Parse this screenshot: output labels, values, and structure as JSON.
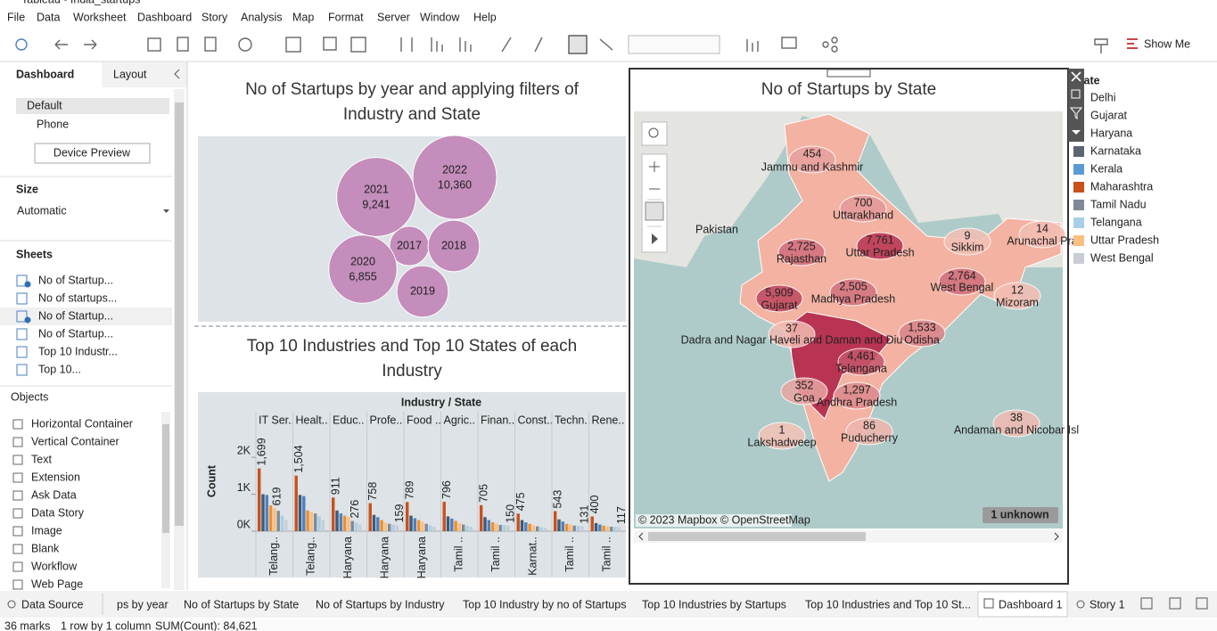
{
  "window": {
    "title": "Tableau - India_startups",
    "menu": [
      "File",
      "Data",
      "Worksheet",
      "Dashboard",
      "Story",
      "Analysis",
      "Map",
      "Format",
      "Server",
      "Window",
      "Help"
    ],
    "show_me": "Show Me"
  },
  "side_panel": {
    "tabs": [
      "Dashboard",
      "Layout"
    ],
    "devices": [
      "Default",
      "Phone"
    ],
    "device_preview": "Device Preview",
    "size_heading": "Size",
    "size": "Automatic",
    "sheets_heading": "Sheets",
    "sheets": [
      "No of Startup...",
      "No of startups...",
      "No of Startup...",
      "No of Startup...",
      "Top 10 Industr...",
      "Top 10..."
    ],
    "objects_heading": "Objects",
    "objects": [
      "Horizontal Container",
      "Vertical Container",
      "Text",
      "Extension",
      "Ask Data",
      "Data Story",
      "Image",
      "Blank",
      "Workflow",
      "Web Page"
    ]
  },
  "chart_data": [
    {
      "type": "bubble",
      "title": "No of Startups by year and applying filters of Industry and State",
      "categories": [
        "2017",
        "2018",
        "2019",
        "2020",
        "2021",
        "2022"
      ],
      "values": [
        2300,
        3900,
        3900,
        6855,
        9241,
        10360
      ],
      "value_labels": [
        null,
        null,
        null,
        "6,855",
        "9,241",
        "10,360"
      ],
      "color": "#c48dbb"
    },
    {
      "type": "bar",
      "title": "Top 10 Industries and Top 10 States of each Industry",
      "header": "Industry / State",
      "y_label": "Count",
      "categories": [
        "IT Ser..",
        "Healt..",
        "Educ..",
        "Profe..",
        "Food ..",
        "Agric..",
        "Finan..",
        "Const..",
        "Techn..",
        "Rene.."
      ],
      "x_labels": [
        "Telang..",
        "Telang..",
        "Haryana",
        "Haryana",
        "Haryana",
        "Tamil ..",
        "Tamil ..",
        "Karnat..",
        "Tamil ..",
        "Tamil .."
      ],
      "ylim": [
        0,
        2750
      ],
      "yticks": [
        {
          "value": 0,
          "label": "0K"
        },
        {
          "value": 1000,
          "label": "1K"
        },
        {
          "value": 2000,
          "label": "2K"
        }
      ],
      "colors": [
        "#c9501c",
        "#3c5a7a",
        "#4f81bd",
        "#f28e2b",
        "#fbbf80",
        "#7f8a96",
        "#a9cfe8",
        "#c8cdd3"
      ],
      "groups": [
        {
          "values": [
            1699,
            1000,
            980,
            700,
            619,
            550,
            420,
            300
          ],
          "value_labels": [
            "1,699",
            null,
            null,
            null,
            "619",
            null,
            null,
            null
          ]
        },
        {
          "values": [
            1504,
            980,
            950,
            560,
            520,
            480,
            400,
            300
          ],
          "value_labels": [
            "1,504",
            null,
            null,
            null,
            null,
            null,
            null,
            null
          ]
        },
        {
          "values": [
            911,
            560,
            480,
            420,
            380,
            276,
            230,
            180
          ],
          "value_labels": [
            "911",
            null,
            null,
            null,
            null,
            "276",
            null,
            null
          ]
        },
        {
          "values": [
            758,
            440,
            380,
            300,
            230,
            200,
            180,
            159
          ],
          "value_labels": [
            "758",
            null,
            null,
            null,
            null,
            null,
            null,
            "159"
          ]
        },
        {
          "values": [
            789,
            420,
            350,
            300,
            250,
            200,
            160,
            120
          ],
          "value_labels": [
            "789",
            null,
            null,
            null,
            null,
            null,
            null,
            null
          ]
        },
        {
          "values": [
            796,
            400,
            340,
            280,
            220,
            180,
            150,
            120
          ],
          "value_labels": [
            "796",
            null,
            null,
            null,
            null,
            null,
            null,
            null
          ]
        },
        {
          "values": [
            705,
            380,
            300,
            240,
            200,
            170,
            160,
            150
          ],
          "value_labels": [
            "705",
            null,
            null,
            null,
            null,
            null,
            null,
            "150"
          ]
        },
        {
          "values": [
            475,
            300,
            240,
            200,
            160,
            130,
            110,
            90
          ],
          "value_labels": [
            "475",
            null,
            null,
            null,
            null,
            null,
            null,
            null
          ]
        },
        {
          "values": [
            543,
            320,
            260,
            200,
            180,
            150,
            140,
            131
          ],
          "value_labels": [
            "543",
            null,
            null,
            null,
            null,
            null,
            null,
            "131"
          ]
        },
        {
          "values": [
            400,
            220,
            180,
            150,
            130,
            120,
            118,
            117
          ],
          "value_labels": [
            "400",
            null,
            null,
            null,
            null,
            null,
            null,
            "117"
          ]
        }
      ]
    },
    {
      "type": "map",
      "title": "No of Startups by State",
      "regions": [
        "Jammu and Kashmir",
        "Uttarakhand",
        "Uttar Pradesh",
        "Rajasthan",
        "Sikkim",
        "Arunachal Pra",
        "West Bengal",
        "Mizoram",
        "Gujarat",
        "Madhya Pradesh",
        "Dadra and Nagar Haveli and Daman and Diu",
        "Odisha",
        "Telangana",
        "Goa",
        "Andhra Pradesh",
        "Lakshadweep",
        "Puducherry",
        "Andaman and Nicobar Isl"
      ],
      "values": [
        454,
        700,
        7761,
        2725,
        9,
        14,
        2764,
        12,
        5909,
        2505,
        37,
        1533,
        4461,
        352,
        1297,
        1,
        86,
        38
      ],
      "value_labels": [
        "454",
        "700",
        "7,761",
        "2,725",
        "9",
        "14",
        "2,764",
        "12",
        "5,909",
        "2,505",
        "37",
        "1,533",
        "4,461",
        "352",
        "1,297",
        "1",
        "86",
        "38"
      ],
      "country_label": "Pakistan",
      "attribution": "© 2023 Mapbox © OpenStreetMap",
      "unknown": "1 unknown",
      "legend": {
        "title": "State",
        "items": [
          "Delhi",
          "Gujarat",
          "Haryana",
          "Karnataka",
          "Kerala",
          "Maharashtra",
          "Tamil Nadu",
          "Telangana",
          "Uttar Pradesh",
          "West Bengal"
        ],
        "colors": [
          "#1f4e79",
          "#2f6b9a",
          "#6b8fb3",
          "#5b6470",
          "#5b9bd5",
          "#c9501c",
          "#7f8a96",
          "#a9cfe8",
          "#fbbf80",
          "#c8cdd3"
        ]
      }
    }
  ],
  "sheet_tabs": [
    "Data Source",
    "ps by year",
    "No of Startups by State",
    "No of Startups by Industry",
    "Top 10 Industry by no of Startups",
    "Top 10 Industries by Startups",
    "Top 10 Industries and Top 10 St...",
    "Dashboard 1",
    "Story 1"
  ],
  "status": [
    "36 marks",
    "1 row by 1 column",
    "SUM(Count): 84,621"
  ]
}
